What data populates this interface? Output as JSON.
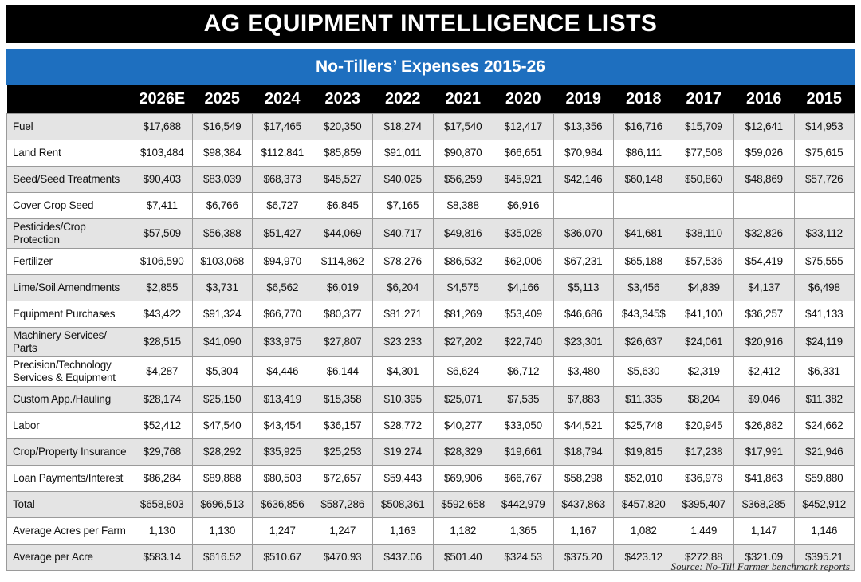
{
  "header": {
    "title": "AG EQUIPMENT INTELLIGENCE LISTS"
  },
  "table": {
    "title": "No-Tillers’ Expenses 2015-26",
    "columns": [
      "2026E",
      "2025",
      "2024",
      "2023",
      "2022",
      "2021",
      "2020",
      "2019",
      "2018",
      "2017",
      "2016",
      "2015"
    ],
    "rows": [
      {
        "label": "Fuel",
        "values": [
          "$17,688",
          "$16,549",
          "$17,465",
          "$20,350",
          "$18,274",
          "$17,540",
          "$12,417",
          "$13,356",
          "$16,716",
          "$15,709",
          "$12,641",
          "$14,953"
        ]
      },
      {
        "label": "Land Rent",
        "values": [
          "$103,484",
          "$98,384",
          "$112,841",
          "$85,859",
          "$91,011",
          "$90,870",
          "$66,651",
          "$70,984",
          "$86,111",
          "$77,508",
          "$59,026",
          "$75,615"
        ]
      },
      {
        "label": "Seed/Seed Treatments",
        "values": [
          "$90,403",
          "$83,039",
          "$68,373",
          "$45,527",
          "$40,025",
          "$56,259",
          "$45,921",
          "$42,146",
          "$60,148",
          "$50,860",
          "$48,869",
          "$57,726"
        ]
      },
      {
        "label": "Cover Crop Seed",
        "values": [
          "$7,411",
          "$6,766",
          "$6,727",
          "$6,845",
          "$7,165",
          "$8,388",
          "$6,916",
          "—",
          "—",
          "—",
          "—",
          "—"
        ]
      },
      {
        "label": "Pesticides/Crop Protection",
        "values": [
          "$57,509",
          "$56,388",
          "$51,427",
          "$44,069",
          "$40,717",
          "$49,816",
          "$35,028",
          "$36,070",
          "$41,681",
          "$38,110",
          "$32,826",
          "$33,112"
        ]
      },
      {
        "label": "Fertilizer",
        "values": [
          "$106,590",
          "$103,068",
          "$94,970",
          "$114,862",
          "$78,276",
          "$86,532",
          "$62,006",
          "$67,231",
          "$65,188",
          "$57,536",
          "$54,419",
          "$75,555"
        ]
      },
      {
        "label": "Lime/Soil Amendments",
        "values": [
          "$2,855",
          "$3,731",
          "$6,562",
          "$6,019",
          "$6,204",
          "$4,575",
          "$4,166",
          "$5,113",
          "$3,456",
          "$4,839",
          "$4,137",
          "$6,498"
        ]
      },
      {
        "label": "Equipment Purchases",
        "values": [
          "$43,422",
          "$91,324",
          "$66,770",
          "$80,377",
          "$81,271",
          "$81,269",
          "$53,409",
          "$46,686",
          "$43,345$",
          "$41,100",
          "$36,257",
          "$41,133"
        ]
      },
      {
        "label": "Machinery Services/ Parts",
        "values": [
          "$28,515",
          "$41,090",
          "$33,975",
          "$27,807",
          "$23,233",
          "$27,202",
          "$22,740",
          "$23,301",
          "$26,637",
          "$24,061",
          "$20,916",
          "$24,119"
        ]
      },
      {
        "label": "Precision/Technology Services & Equipment",
        "values": [
          "$4,287",
          "$5,304",
          "$4,446",
          "$6,144",
          "$4,301",
          "$6,624",
          "$6,712",
          "$3,480",
          "$5,630",
          "$2,319",
          "$2,412",
          "$6,331"
        ]
      },
      {
        "label": "Custom App./Hauling",
        "values": [
          "$28,174",
          "$25,150",
          "$13,419",
          "$15,358",
          "$10,395",
          "$25,071",
          "$7,535",
          "$7,883",
          "$11,335",
          "$8,204",
          "$9,046",
          "$11,382"
        ]
      },
      {
        "label": "Labor",
        "values": [
          "$52,412",
          "$47,540",
          "$43,454",
          "$36,157",
          "$28,772",
          "$40,277",
          "$33,050",
          "$44,521",
          "$25,748",
          "$20,945",
          "$26,882",
          "$24,662"
        ]
      },
      {
        "label": "Crop/Property Insurance",
        "values": [
          "$29,768",
          "$28,292",
          "$35,925",
          "$25,253",
          "$19,274",
          "$28,329",
          "$19,661",
          "$18,794",
          "$19,815",
          "$17,238",
          "$17,991",
          "$21,946"
        ]
      },
      {
        "label": "Loan Payments/Interest",
        "values": [
          "$86,284",
          "$89,888",
          "$80,503",
          "$72,657",
          "$59,443",
          "$69,906",
          "$66,767",
          "$58,298",
          "$52,010",
          "$36,978",
          "$41,863",
          "$59,880"
        ]
      },
      {
        "label": "Total",
        "values": [
          "$658,803",
          "$696,513",
          "$636,856",
          "$587,286",
          "$508,361",
          "$592,658",
          "$442,979",
          "$437,863",
          "$457,820",
          "$395,407",
          "$368,285",
          "$452,912"
        ]
      },
      {
        "label": "Average Acres per Farm",
        "values": [
          "1,130",
          "1,130",
          "1,247",
          "1,247",
          "1,163",
          "1,182",
          "1,365",
          "1,167",
          "1,082",
          "1,449",
          "1,147",
          "1,146"
        ]
      },
      {
        "label": "Average per Acre",
        "values": [
          "$583.14",
          "$616.52",
          "$510.67",
          "$470.93",
          "$437.06",
          "$501.40",
          "$324.53",
          "$375.20",
          "$423.12",
          "$272.88",
          "$321.09",
          "$395.21"
        ]
      }
    ]
  },
  "source": "Source:  No-Till Farmer benchmark reports"
}
